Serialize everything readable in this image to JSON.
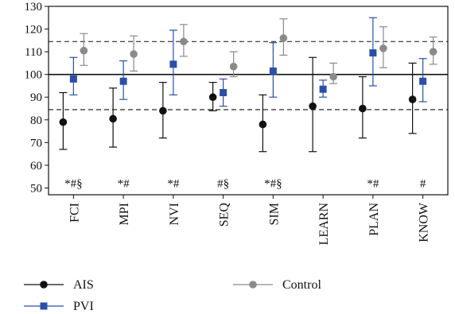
{
  "chart_data": {
    "type": "scatter",
    "title": "",
    "xlabel": "",
    "ylabel": "",
    "ylim": [
      47,
      130
    ],
    "yticks": [
      50,
      60,
      70,
      80,
      90,
      100,
      110,
      120,
      130
    ],
    "categories": [
      "FCI",
      "MPI",
      "NVI",
      "SEQ",
      "SIM",
      "LEARN",
      "PLAN",
      "KNOW"
    ],
    "reference_lines": [
      {
        "value": 100,
        "style": "solid"
      },
      {
        "value": 114.5,
        "style": "dashed"
      },
      {
        "value": 84.5,
        "style": "dashed"
      }
    ],
    "grid": false,
    "legend_position": "bottom",
    "series": [
      {
        "name": "AIS",
        "marker": "circle",
        "color": "#111111",
        "values": [
          79,
          80.5,
          84,
          90,
          78,
          86,
          85,
          89
        ],
        "lower": [
          67,
          68,
          72,
          84,
          66,
          66,
          72,
          74
        ],
        "upper": [
          92,
          94,
          96.5,
          96.5,
          91,
          107.5,
          99,
          105
        ]
      },
      {
        "name": "PVI",
        "marker": "square",
        "color": "#2b4fa8",
        "values": [
          98,
          97,
          104.5,
          92,
          101.5,
          93.5,
          109.5,
          97
        ],
        "lower": [
          91,
          89,
          91,
          86,
          90,
          90,
          95,
          88
        ],
        "upper": [
          107.5,
          106,
          119.5,
          98,
          114,
          97.5,
          125,
          107
        ]
      },
      {
        "name": "Control",
        "marker": "circle",
        "color": "#8a8a8a",
        "values": [
          110.5,
          109,
          114.5,
          103.5,
          116,
          99,
          111.5,
          110
        ],
        "lower": [
          104,
          101.5,
          108,
          99,
          108.5,
          96,
          103,
          104.5
        ],
        "upper": [
          118,
          117,
          122,
          110,
          124.5,
          105,
          121,
          116.5
        ]
      }
    ],
    "annotations": [
      "*#§",
      "*#",
      "*#",
      "#§",
      "*#§",
      "",
      "*#",
      "#"
    ]
  }
}
